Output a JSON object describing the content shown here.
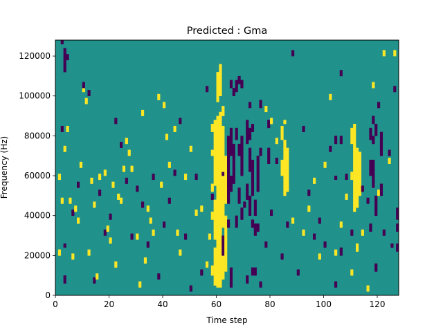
{
  "chart_data": {
    "type": "heatmap",
    "title": "Predicted : Gma",
    "xlabel": "Time step",
    "ylabel": "Frequency (Hz)",
    "xlim": [
      0,
      128
    ],
    "ylim": [
      0,
      128000
    ],
    "x_ticks": [
      0,
      20,
      40,
      60,
      80,
      100,
      120
    ],
    "y_ticks": [
      0,
      20000,
      40000,
      60000,
      80000,
      100000,
      120000
    ],
    "grid": false,
    "legend": "none",
    "n_time_steps": 128,
    "n_freq_bins": 128,
    "bin_width_hz": 1000,
    "levels": [
      -1,
      0,
      1
    ],
    "colors": {
      "-1": "#440154",
      "0": "#21918c",
      "1": "#fde725"
    },
    "background_value": 0,
    "cells": {
      "yellow_columns": [
        {
          "t": 58,
          "f_ranges": [
            [
              10000,
              15000
            ],
            [
              38000,
              42000
            ],
            [
              52000,
              56000
            ],
            [
              82000,
              86000
            ]
          ]
        },
        {
          "t": 59,
          "f_ranges": [
            [
              5000,
              24000
            ],
            [
              28000,
              48000
            ],
            [
              55000,
              88000
            ]
          ]
        },
        {
          "t": 60,
          "f_ranges": [
            [
              4000,
              90000
            ],
            [
              97000,
              112000
            ]
          ]
        },
        {
          "t": 61,
          "f_ranges": [
            [
              4000,
              92000
            ],
            [
              100000,
              116000
            ]
          ]
        },
        {
          "t": 62,
          "f_ranges": [
            [
              8000,
              30000
            ],
            [
              34000,
              85000
            ],
            [
              90000,
              95000
            ]
          ]
        },
        {
          "t": 63,
          "f_ranges": [
            [
              12000,
              40000
            ],
            [
              46000,
              70000
            ]
          ]
        },
        {
          "t": 84,
          "f_ranges": [
            [
              60000,
              68000
            ],
            [
              78000,
              85000
            ]
          ]
        },
        {
          "t": 85,
          "f_ranges": [
            [
              50000,
              78000
            ],
            [
              86000,
              88000
            ]
          ]
        },
        {
          "t": 86,
          "f_ranges": [
            [
              52000,
              74000
            ]
          ]
        },
        {
          "t": 110,
          "f_ranges": [
            [
              58000,
              62000
            ],
            [
              76000,
              84000
            ]
          ]
        },
        {
          "t": 111,
          "f_ranges": [
            [
              42000,
              86000
            ]
          ]
        },
        {
          "t": 112,
          "f_ranges": [
            [
              44000,
              74000
            ],
            [
              22000,
              26000
            ]
          ]
        },
        {
          "t": 113,
          "f_ranges": [
            [
              50000,
              72000
            ]
          ]
        }
      ],
      "purple_columns": [
        {
          "t": 3,
          "f_ranges": [
            [
              112000,
              124000
            ],
            [
              6000,
              10000
            ],
            [
              24000,
              26000
            ]
          ]
        },
        {
          "t": 62,
          "f_ranges": [
            [
              20000,
              30000
            ],
            [
              60000,
              62000
            ]
          ]
        },
        {
          "t": 64,
          "f_ranges": [
            [
              46000,
              80000
            ],
            [
              34000,
              38000
            ]
          ]
        },
        {
          "t": 65,
          "f_ranges": [
            [
              4000,
              14000
            ],
            [
              52000,
              60000
            ],
            [
              70000,
              84000
            ],
            [
              104000,
              108000
            ]
          ]
        },
        {
          "t": 66,
          "f_ranges": [
            [
              56000,
              76000
            ],
            [
              100000,
              104000
            ],
            [
              64000,
              66000
            ]
          ]
        },
        {
          "t": 67,
          "f_ranges": [
            [
              34000,
              40000
            ],
            [
              78000,
              84000
            ],
            [
              102000,
              108000
            ]
          ]
        },
        {
          "t": 68,
          "f_ranges": [
            [
              46000,
              54000
            ],
            [
              70000,
              76000
            ],
            [
              106000,
              110000
            ]
          ]
        },
        {
          "t": 69,
          "f_ranges": [
            [
              38000,
              44000
            ],
            [
              60000,
              80000
            ],
            [
              104000,
              108000
            ]
          ]
        },
        {
          "t": 71,
          "f_ranges": [
            [
              48000,
              56000
            ],
            [
              76000,
              84000
            ],
            [
              84000,
              88000
            ],
            [
              6000,
              10000
            ]
          ]
        },
        {
          "t": 72,
          "f_ranges": [
            [
              40000,
              50000
            ],
            [
              62000,
              74000
            ],
            [
              78000,
              84000
            ]
          ]
        },
        {
          "t": 73,
          "f_ranges": [
            [
              50000,
              68000
            ],
            [
              82000,
              86000
            ],
            [
              34000,
              38000
            ],
            [
              10000,
              14000
            ]
          ]
        },
        {
          "t": 74,
          "f_ranges": [
            [
              10000,
              14000
            ],
            [
              30000,
              36000
            ],
            [
              40000,
              48000
            ]
          ]
        },
        {
          "t": 75,
          "f_ranges": [
            [
              52000,
              70000
            ],
            [
              32000,
              36000
            ]
          ]
        },
        {
          "t": 76,
          "f_ranges": [
            [
              70000,
              74000
            ],
            [
              94000,
              98000
            ]
          ]
        },
        {
          "t": 79,
          "f_ranges": [
            [
              66000,
              74000
            ],
            [
              84000,
              88000
            ]
          ]
        },
        {
          "t": 104,
          "f_ranges": [
            [
              76000,
              80000
            ],
            [
              58000,
              60000
            ]
          ]
        },
        {
          "t": 106,
          "f_ranges": [
            [
              76000,
              80000
            ],
            [
              20000,
              24000
            ]
          ]
        },
        {
          "t": 117,
          "f_ranges": [
            [
              60000,
              68000
            ],
            [
              78000,
              84000
            ],
            [
              32000,
              36000
            ]
          ]
        },
        {
          "t": 118,
          "f_ranges": [
            [
              54000,
              68000
            ],
            [
              76000,
              80000
            ],
            [
              86000,
              90000
            ]
          ]
        },
        {
          "t": 119,
          "f_ranges": [
            [
              40000,
              50000
            ],
            [
              80000,
              86000
            ],
            [
              12000,
              16000
            ]
          ]
        },
        {
          "t": 121,
          "f_ranges": [
            [
              70000,
              82000
            ],
            [
              50000,
              56000
            ]
          ]
        },
        {
          "t": 125,
          "f_ranges": [
            [
              24000,
              26000
            ]
          ]
        },
        {
          "t": 127,
          "f_ranges": [
            [
              22000,
              26000
            ],
            [
              32000,
              36000
            ],
            [
              38000,
              44000
            ]
          ]
        }
      ],
      "sparse_yellow": [
        [
          1,
          58000
        ],
        [
          1,
          20000
        ],
        [
          2,
          46000
        ],
        [
          3,
          72000
        ],
        [
          4,
          82000
        ],
        [
          5,
          46000
        ],
        [
          6,
          18000
        ],
        [
          7,
          42000
        ],
        [
          8,
          36000
        ],
        [
          9,
          64000
        ],
        [
          10,
          102000
        ],
        [
          11,
          96000
        ],
        [
          12,
          20000
        ],
        [
          13,
          56000
        ],
        [
          14,
          44000
        ],
        [
          15,
          8000
        ],
        [
          16,
          58000
        ],
        [
          18,
          60000
        ],
        [
          19,
          32000
        ],
        [
          20,
          26000
        ],
        [
          21,
          54000
        ],
        [
          22,
          14000
        ],
        [
          23,
          48000
        ],
        [
          24,
          46000
        ],
        [
          25,
          62000
        ],
        [
          26,
          76000
        ],
        [
          27,
          70000
        ],
        [
          28,
          62000
        ],
        [
          30,
          28000
        ],
        [
          31,
          4000
        ],
        [
          32,
          90000
        ],
        [
          33,
          16000
        ],
        [
          34,
          42000
        ],
        [
          35,
          36000
        ],
        [
          36,
          30000
        ],
        [
          38,
          98000
        ],
        [
          39,
          54000
        ],
        [
          40,
          94000
        ],
        [
          41,
          78000
        ],
        [
          42,
          64000
        ],
        [
          44,
          82000
        ],
        [
          45,
          30000
        ],
        [
          46,
          20000
        ],
        [
          48,
          58000
        ],
        [
          50,
          72000
        ],
        [
          52,
          40000
        ],
        [
          54,
          42000
        ],
        [
          56,
          14000
        ],
        [
          57,
          28000
        ],
        [
          58,
          70000
        ],
        [
          76,
          70000
        ],
        [
          78,
          92000
        ],
        [
          80,
          86000
        ],
        [
          82,
          76000
        ],
        [
          88,
          36000
        ],
        [
          92,
          30000
        ],
        [
          94,
          42000
        ],
        [
          96,
          56000
        ],
        [
          98,
          18000
        ],
        [
          100,
          64000
        ],
        [
          102,
          98000
        ],
        [
          104,
          20000
        ],
        [
          106,
          34000
        ],
        [
          108,
          48000
        ],
        [
          110,
          10000
        ],
        [
          114,
          30000
        ],
        [
          116,
          2000
        ],
        [
          118,
          104000
        ],
        [
          120,
          50000
        ],
        [
          122,
          120000
        ],
        [
          124,
          66000
        ],
        [
          126,
          120000
        ]
      ],
      "sparse_purple": [
        [
          2,
          82000
        ],
        [
          2,
          126000
        ],
        [
          4,
          118000
        ],
        [
          6,
          40000
        ],
        [
          8,
          54000
        ],
        [
          10,
          104000
        ],
        [
          12,
          100000
        ],
        [
          14,
          6000
        ],
        [
          16,
          50000
        ],
        [
          18,
          30000
        ],
        [
          20,
          38000
        ],
        [
          22,
          86000
        ],
        [
          24,
          74000
        ],
        [
          26,
          56000
        ],
        [
          28,
          28000
        ],
        [
          30,
          52000
        ],
        [
          32,
          44000
        ],
        [
          34,
          24000
        ],
        [
          36,
          58000
        ],
        [
          38,
          8000
        ],
        [
          40,
          34000
        ],
        [
          42,
          46000
        ],
        [
          44,
          60000
        ],
        [
          46,
          86000
        ],
        [
          48,
          28000
        ],
        [
          50,
          2000
        ],
        [
          52,
          58000
        ],
        [
          54,
          10000
        ],
        [
          56,
          102000
        ],
        [
          58,
          48000
        ],
        [
          70,
          44000
        ],
        [
          72,
          94000
        ],
        [
          76,
          4000
        ],
        [
          78,
          24000
        ],
        [
          80,
          40000
        ],
        [
          82,
          66000
        ],
        [
          84,
          18000
        ],
        [
          86,
          34000
        ],
        [
          88,
          120000
        ],
        [
          90,
          10000
        ],
        [
          92,
          82000
        ],
        [
          94,
          50000
        ],
        [
          96,
          28000
        ],
        [
          98,
          36000
        ],
        [
          100,
          24000
        ],
        [
          102,
          72000
        ],
        [
          104,
          4000
        ],
        [
          106,
          110000
        ],
        [
          108,
          58000
        ],
        [
          110,
          30000
        ],
        [
          114,
          52000
        ],
        [
          116,
          46000
        ],
        [
          120,
          94000
        ],
        [
          122,
          30000
        ],
        [
          124,
          70000
        ],
        [
          126,
          102000
        ]
      ]
    }
  }
}
